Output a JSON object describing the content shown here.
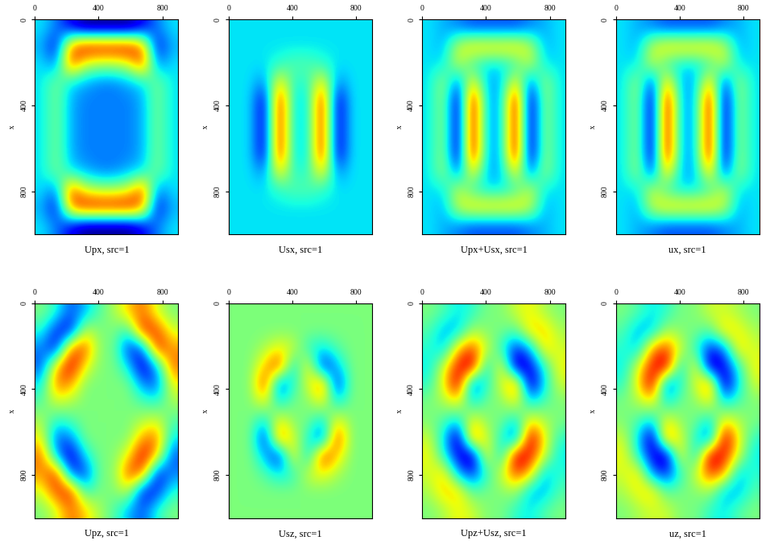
{
  "chart_data": [
    {
      "type": "heatmap",
      "title": "Upx, src=1",
      "ylabel": "x",
      "color": "jet",
      "xlim": [
        0,
        900
      ],
      "ylim": [
        0,
        1000
      ],
      "xticks": [
        0,
        400,
        800
      ],
      "yticks": [
        0,
        400,
        800
      ],
      "color_range": [
        -10,
        10
      ],
      "cells": [
        [
          -3,
          -5,
          -8,
          -10,
          -10,
          -10,
          -10,
          -8,
          -5,
          -3
        ],
        [
          -4,
          -8,
          6,
          9,
          9,
          9,
          9,
          6,
          -8,
          -4
        ],
        [
          -3,
          -5,
          7,
          2,
          1,
          1,
          2,
          7,
          -5,
          -3
        ],
        [
          -3,
          0,
          -3,
          -4,
          -5,
          -5,
          -4,
          -3,
          0,
          -3
        ],
        [
          -3,
          0,
          -4,
          -5,
          -5,
          -5,
          -5,
          -4,
          0,
          -3
        ],
        [
          -3,
          0,
          -4,
          -5,
          -5,
          -5,
          -5,
          -4,
          0,
          -3
        ],
        [
          -3,
          0,
          -4,
          -5,
          -5,
          -5,
          -5,
          -4,
          0,
          -3
        ],
        [
          -3,
          0,
          -4,
          -5,
          -5,
          -5,
          -5,
          -4,
          0,
          -3
        ],
        [
          -3,
          0,
          -3,
          -4,
          -5,
          -5,
          -4,
          -3,
          0,
          -3
        ],
        [
          -3,
          -5,
          7,
          2,
          1,
          1,
          2,
          7,
          -5,
          -3
        ],
        [
          -4,
          -8,
          6,
          9,
          9,
          9,
          9,
          6,
          -8,
          -4
        ],
        [
          -3,
          -5,
          -8,
          -10,
          -10,
          -10,
          -10,
          -8,
          -5,
          -3
        ]
      ]
    },
    {
      "type": "heatmap",
      "title": "Usx, src=1",
      "ylabel": "x",
      "color": "jet",
      "xlim": [
        0,
        900
      ],
      "ylim": [
        0,
        1000
      ],
      "xticks": [
        0,
        400,
        800
      ],
      "yticks": [
        0,
        400,
        800
      ],
      "color_range": [
        -10,
        10
      ],
      "cells": [
        [
          -3,
          -3,
          -3,
          -3,
          -3,
          -3,
          -3,
          -3,
          -3,
          -3
        ],
        [
          -3,
          -3,
          -3,
          -3,
          -3,
          -3,
          -3,
          -3,
          -3,
          -3
        ],
        [
          -3,
          -3,
          -3,
          -2,
          -1,
          -1,
          -2,
          -3,
          -3,
          -3
        ],
        [
          -3,
          -3,
          -5,
          4,
          -2,
          -2,
          4,
          -5,
          -3,
          -3
        ],
        [
          -3,
          -3,
          -9,
          9,
          -3,
          -3,
          9,
          -9,
          -3,
          -3
        ],
        [
          -3,
          -3,
          -9,
          9,
          -3,
          -3,
          9,
          -9,
          -3,
          -3
        ],
        [
          -3,
          -3,
          -9,
          9,
          -3,
          -3,
          9,
          -9,
          -3,
          -3
        ],
        [
          -3,
          -3,
          -9,
          9,
          -3,
          -3,
          9,
          -9,
          -3,
          -3
        ],
        [
          -3,
          -3,
          -5,
          4,
          -2,
          -2,
          4,
          -5,
          -3,
          -3
        ],
        [
          -3,
          -3,
          -3,
          -2,
          -1,
          -1,
          -2,
          -3,
          -3,
          -3
        ],
        [
          -3,
          -3,
          -3,
          -3,
          -3,
          -3,
          -3,
          -3,
          -3,
          -3
        ],
        [
          -3,
          -3,
          -3,
          -3,
          -3,
          -3,
          -3,
          -3,
          -3,
          -3
        ]
      ]
    },
    {
      "type": "heatmap",
      "title": "Upx+Usx, src=1",
      "ylabel": "x",
      "color": "jet",
      "xlim": [
        0,
        900
      ],
      "ylim": [
        0,
        1000
      ],
      "xticks": [
        0,
        400,
        800
      ],
      "yticks": [
        0,
        400,
        800
      ],
      "color_range": [
        -10,
        10
      ],
      "cells": [
        [
          -3,
          -4,
          -5,
          -6,
          -6,
          -6,
          -6,
          -5,
          -4,
          -3
        ],
        [
          -3,
          -4,
          2,
          4,
          4,
          4,
          4,
          2,
          -4,
          -3
        ],
        [
          -3,
          -3,
          2,
          -2,
          -3,
          -3,
          -2,
          2,
          -3,
          -3
        ],
        [
          -3,
          1,
          -6,
          4,
          -4,
          -4,
          4,
          -6,
          1,
          -3
        ],
        [
          -3,
          1,
          -10,
          10,
          -4,
          -4,
          10,
          -10,
          1,
          -3
        ],
        [
          -3,
          1,
          -10,
          10,
          -4,
          -4,
          10,
          -10,
          1,
          -3
        ],
        [
          -3,
          1,
          -10,
          10,
          -4,
          -4,
          10,
          -10,
          1,
          -3
        ],
        [
          -3,
          1,
          -10,
          10,
          -4,
          -4,
          10,
          -10,
          1,
          -3
        ],
        [
          -3,
          1,
          -6,
          4,
          -4,
          -4,
          4,
          -6,
          1,
          -3
        ],
        [
          -3,
          -3,
          2,
          -2,
          -3,
          -3,
          -2,
          2,
          -3,
          -3
        ],
        [
          -3,
          -4,
          2,
          4,
          4,
          4,
          4,
          2,
          -4,
          -3
        ],
        [
          -3,
          -4,
          -5,
          -6,
          -6,
          -6,
          -6,
          -5,
          -4,
          -3
        ]
      ]
    },
    {
      "type": "heatmap",
      "title": "ux, src=1",
      "ylabel": "x",
      "color": "jet",
      "xlim": [
        0,
        900
      ],
      "ylim": [
        0,
        1000
      ],
      "xticks": [
        0,
        400,
        800
      ],
      "yticks": [
        0,
        400,
        800
      ],
      "color_range": [
        -10,
        10
      ],
      "cells": [
        [
          -3,
          -4,
          -5,
          -6,
          -6,
          -6,
          -6,
          -5,
          -4,
          -3
        ],
        [
          -3,
          -4,
          2,
          4,
          4,
          4,
          4,
          2,
          -4,
          -3
        ],
        [
          -3,
          -3,
          2,
          -2,
          -3,
          -3,
          -2,
          2,
          -3,
          -3
        ],
        [
          -3,
          1,
          -7,
          5,
          -4,
          -4,
          5,
          -7,
          1,
          -3
        ],
        [
          -3,
          1,
          -10,
          10,
          -4,
          -4,
          10,
          -10,
          1,
          -3
        ],
        [
          -3,
          1,
          -10,
          10,
          -4,
          -4,
          10,
          -10,
          1,
          -3
        ],
        [
          -3,
          1,
          -10,
          10,
          -4,
          -4,
          10,
          -10,
          1,
          -3
        ],
        [
          -3,
          1,
          -10,
          10,
          -4,
          -4,
          10,
          -10,
          1,
          -3
        ],
        [
          -3,
          1,
          -7,
          5,
          -4,
          -4,
          5,
          -7,
          1,
          -3
        ],
        [
          -3,
          -3,
          2,
          -2,
          -3,
          -3,
          -2,
          2,
          -3,
          -3
        ],
        [
          -3,
          -4,
          2,
          4,
          4,
          4,
          4,
          2,
          -4,
          -3
        ],
        [
          -3,
          -4,
          -5,
          -6,
          -6,
          -6,
          -6,
          -5,
          -4,
          -3
        ]
      ]
    },
    {
      "type": "heatmap",
      "title": "Upz, src=1",
      "ylabel": "x",
      "color": "jet",
      "xlim": [
        0,
        900
      ],
      "ylim": [
        0,
        1000
      ],
      "xticks": [
        0,
        400,
        800
      ],
      "yticks": [
        0,
        400,
        800
      ],
      "color_range": [
        -10,
        10
      ],
      "cells": [
        [
          0,
          -2,
          -6,
          -4,
          -1,
          1,
          4,
          6,
          2,
          0
        ],
        [
          -2,
          -7,
          -8,
          2,
          0,
          0,
          -2,
          8,
          7,
          2
        ],
        [
          -5,
          -8,
          6,
          7,
          0,
          0,
          -7,
          -6,
          8,
          5
        ],
        [
          -6,
          4,
          9,
          3,
          0,
          0,
          -3,
          -9,
          -4,
          6
        ],
        [
          -3,
          6,
          5,
          0,
          0,
          0,
          0,
          -5,
          -6,
          3
        ],
        [
          -1,
          2,
          1,
          0,
          0,
          0,
          0,
          -1,
          -2,
          1
        ],
        [
          1,
          -2,
          -1,
          0,
          0,
          0,
          0,
          1,
          2,
          -1
        ],
        [
          3,
          -6,
          -5,
          0,
          0,
          0,
          0,
          5,
          6,
          -3
        ],
        [
          6,
          -4,
          -9,
          -3,
          0,
          0,
          3,
          9,
          4,
          -6
        ],
        [
          5,
          8,
          -6,
          -7,
          0,
          0,
          7,
          6,
          -8,
          -5
        ],
        [
          2,
          7,
          8,
          -2,
          0,
          0,
          2,
          -8,
          -7,
          -2
        ],
        [
          0,
          2,
          6,
          4,
          1,
          -1,
          -4,
          -6,
          -2,
          0
        ]
      ]
    },
    {
      "type": "heatmap",
      "title": "Usz, src=1",
      "ylabel": "x",
      "color": "jet",
      "xlim": [
        0,
        900
      ],
      "ylim": [
        0,
        1000
      ],
      "xticks": [
        0,
        400,
        800
      ],
      "yticks": [
        0,
        400,
        800
      ],
      "color_range": [
        -10,
        10
      ],
      "cells": [
        [
          0,
          0,
          0,
          0,
          0,
          0,
          0,
          0,
          0,
          0
        ],
        [
          0,
          0,
          0,
          0,
          0,
          0,
          0,
          0,
          0,
          0
        ],
        [
          0,
          0,
          1,
          3,
          2,
          -2,
          -3,
          -1,
          0,
          0
        ],
        [
          0,
          0,
          4,
          8,
          -4,
          4,
          -8,
          -4,
          0,
          0
        ],
        [
          0,
          0,
          8,
          -7,
          -2,
          2,
          7,
          -8,
          0,
          0
        ],
        [
          0,
          0,
          3,
          -3,
          0,
          0,
          3,
          -3,
          0,
          0
        ],
        [
          0,
          0,
          -3,
          3,
          0,
          0,
          -3,
          3,
          0,
          0
        ],
        [
          0,
          0,
          -8,
          7,
          2,
          -2,
          -7,
          8,
          0,
          0
        ],
        [
          0,
          0,
          -4,
          -8,
          4,
          -4,
          8,
          4,
          0,
          0
        ],
        [
          0,
          0,
          -1,
          -3,
          -2,
          2,
          3,
          1,
          0,
          0
        ],
        [
          0,
          0,
          0,
          0,
          0,
          0,
          0,
          0,
          0,
          0
        ],
        [
          0,
          0,
          0,
          0,
          0,
          0,
          0,
          0,
          0,
          0
        ]
      ]
    },
    {
      "type": "heatmap",
      "title": "Upz+Usz, src=1",
      "ylabel": "x",
      "color": "jet",
      "xlim": [
        0,
        900
      ],
      "ylim": [
        0,
        1000
      ],
      "xticks": [
        0,
        400,
        800
      ],
      "yticks": [
        0,
        400,
        800
      ],
      "color_range": [
        -10,
        10
      ],
      "cells": [
        [
          0,
          -1,
          -3,
          -2,
          0,
          0,
          2,
          3,
          1,
          0
        ],
        [
          -1,
          -4,
          -4,
          1,
          0,
          0,
          -1,
          4,
          4,
          1
        ],
        [
          -2,
          -4,
          4,
          7,
          2,
          -2,
          -7,
          -4,
          4,
          2
        ],
        [
          -3,
          2,
          8,
          10,
          -4,
          4,
          -10,
          -8,
          -2,
          3
        ],
        [
          -2,
          3,
          10,
          -7,
          -2,
          2,
          7,
          -10,
          -3,
          2
        ],
        [
          0,
          1,
          3,
          -3,
          0,
          0,
          3,
          -3,
          -1,
          0
        ],
        [
          0,
          -1,
          -3,
          3,
          0,
          0,
          -3,
          3,
          1,
          0
        ],
        [
          2,
          -3,
          -10,
          7,
          2,
          -2,
          -7,
          10,
          3,
          -2
        ],
        [
          3,
          -2,
          -8,
          -10,
          4,
          -4,
          10,
          8,
          2,
          -3
        ],
        [
          2,
          4,
          -4,
          -7,
          -2,
          2,
          7,
          4,
          -4,
          -2
        ],
        [
          1,
          4,
          4,
          -1,
          0,
          0,
          1,
          -4,
          -4,
          -1
        ],
        [
          0,
          1,
          3,
          2,
          0,
          0,
          -2,
          -3,
          -1,
          0
        ]
      ]
    },
    {
      "type": "heatmap",
      "title": "uz, src=1",
      "ylabel": "x",
      "color": "jet",
      "xlim": [
        0,
        900
      ],
      "ylim": [
        0,
        1000
      ],
      "xticks": [
        0,
        400,
        800
      ],
      "yticks": [
        0,
        400,
        800
      ],
      "color_range": [
        -10,
        10
      ],
      "cells": [
        [
          0,
          -1,
          -3,
          -2,
          0,
          0,
          2,
          2,
          1,
          0
        ],
        [
          -1,
          -4,
          -4,
          1,
          0,
          0,
          -1,
          4,
          3,
          1
        ],
        [
          -2,
          -4,
          5,
          7,
          2,
          -2,
          -7,
          -5,
          4,
          2
        ],
        [
          -3,
          2,
          8,
          10,
          -4,
          4,
          -10,
          -8,
          -2,
          3
        ],
        [
          -2,
          3,
          10,
          -7,
          -2,
          2,
          7,
          -10,
          -3,
          2
        ],
        [
          0,
          1,
          3,
          -3,
          0,
          0,
          3,
          -3,
          -1,
          0
        ],
        [
          0,
          -1,
          -3,
          3,
          0,
          0,
          -3,
          3,
          1,
          0
        ],
        [
          2,
          -3,
          -10,
          7,
          2,
          -2,
          -7,
          10,
          3,
          -2
        ],
        [
          3,
          -2,
          -8,
          -10,
          4,
          -4,
          10,
          8,
          2,
          -3
        ],
        [
          2,
          4,
          -5,
          -7,
          -2,
          2,
          7,
          5,
          -4,
          -2
        ],
        [
          1,
          3,
          4,
          -1,
          0,
          0,
          1,
          -4,
          -4,
          -1
        ],
        [
          0,
          1,
          2,
          2,
          0,
          0,
          -2,
          -3,
          -1,
          0
        ]
      ]
    }
  ]
}
